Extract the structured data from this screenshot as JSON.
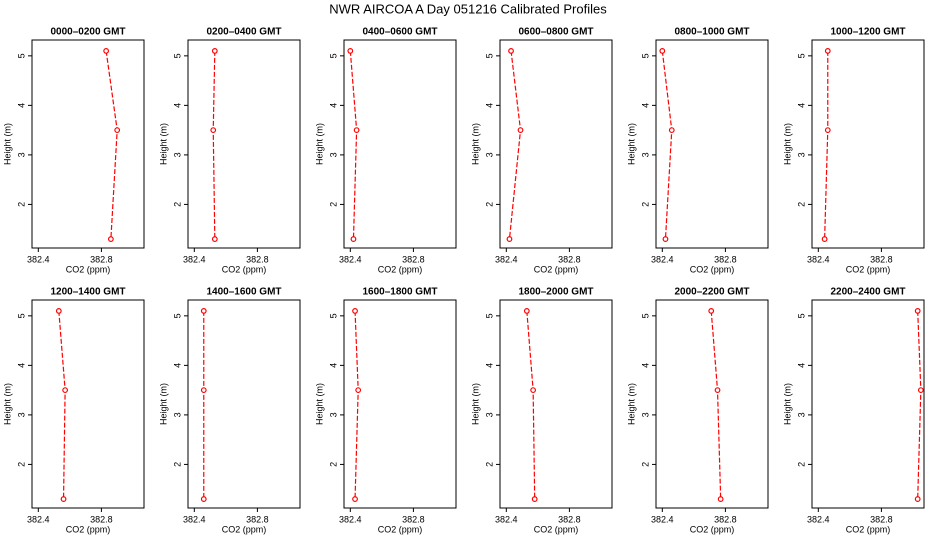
{
  "title": "NWR AIRCOA A  Day 051216  Calibrated Profiles",
  "chart_data": [
    {
      "type": "line",
      "title": "0000–0200 GMT",
      "xlabel": "CO2 (ppm)",
      "ylabel": "Height (m)",
      "x": [
        382.83,
        382.9,
        382.86
      ],
      "y": [
        5.1,
        3.5,
        1.3
      ],
      "color": "#ff0000",
      "xlim": [
        382.36,
        383.07
      ],
      "ylim": [
        1.12,
        5.32
      ],
      "xticks": [
        382.4,
        382.8
      ],
      "yticks": [
        2,
        3,
        4,
        5
      ]
    },
    {
      "type": "line",
      "title": "0200–0400 GMT",
      "xlabel": "CO2 (ppm)",
      "ylabel": "Height (m)",
      "x": [
        382.53,
        382.52,
        382.53
      ],
      "y": [
        5.1,
        3.5,
        1.3
      ],
      "color": "#ff0000",
      "xlim": [
        382.36,
        383.07
      ],
      "ylim": [
        1.12,
        5.32
      ],
      "xticks": [
        382.4,
        382.8
      ],
      "yticks": [
        2,
        3,
        4,
        5
      ]
    },
    {
      "type": "line",
      "title": "0400–0600 GMT",
      "xlabel": "CO2 (ppm)",
      "ylabel": "Height (m)",
      "x": [
        382.4,
        382.44,
        382.42
      ],
      "y": [
        5.1,
        3.5,
        1.3
      ],
      "color": "#ff0000",
      "xlim": [
        382.36,
        383.07
      ],
      "ylim": [
        1.12,
        5.32
      ],
      "xticks": [
        382.4,
        382.8
      ],
      "yticks": [
        2,
        3,
        4,
        5
      ]
    },
    {
      "type": "line",
      "title": "0600–0800 GMT",
      "xlabel": "CO2 (ppm)",
      "ylabel": "Height (m)",
      "x": [
        382.43,
        382.49,
        382.42
      ],
      "y": [
        5.1,
        3.5,
        1.3
      ],
      "color": "#ff0000",
      "xlim": [
        382.36,
        383.07
      ],
      "ylim": [
        1.12,
        5.32
      ],
      "xticks": [
        382.4,
        382.8
      ],
      "yticks": [
        2,
        3,
        4,
        5
      ]
    },
    {
      "type": "line",
      "title": "0800–1000 GMT",
      "xlabel": "CO2 (ppm)",
      "ylabel": "Height (m)",
      "x": [
        382.4,
        382.46,
        382.42
      ],
      "y": [
        5.1,
        3.5,
        1.3
      ],
      "color": "#ff0000",
      "xlim": [
        382.36,
        383.07
      ],
      "ylim": [
        1.12,
        5.32
      ],
      "xticks": [
        382.4,
        382.8
      ],
      "yticks": [
        2,
        3,
        4,
        5
      ]
    },
    {
      "type": "line",
      "title": "1000–1200 GMT",
      "xlabel": "CO2 (ppm)",
      "ylabel": "Height (m)",
      "x": [
        382.46,
        382.46,
        382.44
      ],
      "y": [
        5.1,
        3.5,
        1.3
      ],
      "color": "#ff0000",
      "xlim": [
        382.36,
        383.07
      ],
      "ylim": [
        1.12,
        5.32
      ],
      "xticks": [
        382.4,
        382.8
      ],
      "yticks": [
        2,
        3,
        4,
        5
      ]
    },
    {
      "type": "line",
      "title": "1200–1400 GMT",
      "xlabel": "CO2 (ppm)",
      "ylabel": "Height (m)",
      "x": [
        382.53,
        382.57,
        382.56
      ],
      "y": [
        5.1,
        3.5,
        1.3
      ],
      "color": "#ff0000",
      "xlim": [
        382.36,
        383.07
      ],
      "ylim": [
        1.12,
        5.32
      ],
      "xticks": [
        382.4,
        382.8
      ],
      "yticks": [
        2,
        3,
        4,
        5
      ]
    },
    {
      "type": "line",
      "title": "1400–1600 GMT",
      "xlabel": "CO2 (ppm)",
      "ylabel": "Height (m)",
      "x": [
        382.46,
        382.46,
        382.46
      ],
      "y": [
        5.1,
        3.5,
        1.3
      ],
      "color": "#ff0000",
      "xlim": [
        382.36,
        383.07
      ],
      "ylim": [
        1.12,
        5.32
      ],
      "xticks": [
        382.4,
        382.8
      ],
      "yticks": [
        2,
        3,
        4,
        5
      ]
    },
    {
      "type": "line",
      "title": "1600–1800 GMT",
      "xlabel": "CO2 (ppm)",
      "ylabel": "Height (m)",
      "x": [
        382.43,
        382.45,
        382.43
      ],
      "y": [
        5.1,
        3.5,
        1.3
      ],
      "color": "#ff0000",
      "xlim": [
        382.36,
        383.07
      ],
      "ylim": [
        1.12,
        5.32
      ],
      "xticks": [
        382.4,
        382.8
      ],
      "yticks": [
        2,
        3,
        4,
        5
      ]
    },
    {
      "type": "line",
      "title": "1800–2000 GMT",
      "xlabel": "CO2 (ppm)",
      "ylabel": "Height (m)",
      "x": [
        382.53,
        382.57,
        382.58
      ],
      "y": [
        5.1,
        3.5,
        1.3
      ],
      "color": "#ff0000",
      "xlim": [
        382.36,
        383.07
      ],
      "ylim": [
        1.12,
        5.32
      ],
      "xticks": [
        382.4,
        382.8
      ],
      "yticks": [
        2,
        3,
        4,
        5
      ]
    },
    {
      "type": "line",
      "title": "2000–2200 GMT",
      "xlabel": "CO2 (ppm)",
      "ylabel": "Height (m)",
      "x": [
        382.71,
        382.75,
        382.77
      ],
      "y": [
        5.1,
        3.5,
        1.3
      ],
      "color": "#ff0000",
      "xlim": [
        382.36,
        383.07
      ],
      "ylim": [
        1.12,
        5.32
      ],
      "xticks": [
        382.4,
        382.8
      ],
      "yticks": [
        2,
        3,
        4,
        5
      ]
    },
    {
      "type": "line",
      "title": "2200–2400 GMT",
      "xlabel": "CO2 (ppm)",
      "ylabel": "Height (m)",
      "x": [
        383.03,
        383.05,
        383.03
      ],
      "y": [
        5.1,
        3.5,
        1.3
      ],
      "color": "#ff0000",
      "xlim": [
        382.36,
        383.07
      ],
      "ylim": [
        1.12,
        5.32
      ],
      "xticks": [
        382.4,
        382.8
      ],
      "yticks": [
        2,
        3,
        4,
        5
      ]
    }
  ]
}
